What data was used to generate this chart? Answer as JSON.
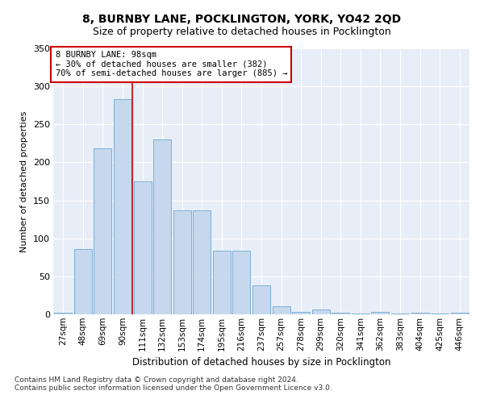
{
  "title": "8, BURNBY LANE, POCKLINGTON, YORK, YO42 2QD",
  "subtitle": "Size of property relative to detached houses in Pocklington",
  "xlabel": "Distribution of detached houses by size in Pocklington",
  "ylabel": "Number of detached properties",
  "categories": [
    "27sqm",
    "48sqm",
    "69sqm",
    "90sqm",
    "111sqm",
    "132sqm",
    "153sqm",
    "174sqm",
    "195sqm",
    "216sqm",
    "237sqm",
    "257sqm",
    "278sqm",
    "299sqm",
    "320sqm",
    "341sqm",
    "362sqm",
    "383sqm",
    "404sqm",
    "425sqm",
    "446sqm"
  ],
  "values": [
    2,
    86,
    219,
    283,
    175,
    230,
    137,
    137,
    84,
    84,
    38,
    11,
    3,
    6,
    2,
    1,
    3,
    1,
    2,
    1,
    2
  ],
  "bar_color": "#c5d8ed",
  "bar_edge_color": "#7bafd4",
  "vline_x": 3.5,
  "vline_color": "#cc0000",
  "annotation_box_text": "8 BURNBY LANE: 98sqm\n← 30% of detached houses are smaller (382)\n70% of semi-detached houses are larger (885) →",
  "annotation_box_color": "#cc0000",
  "background_color": "#e8eef8",
  "grid_color": "#ffffff",
  "footer1": "Contains HM Land Registry data © Crown copyright and database right 2024.",
  "footer2": "Contains public sector information licensed under the Open Government Licence v3.0.",
  "ylim": [
    0,
    350
  ],
  "yticks": [
    0,
    50,
    100,
    150,
    200,
    250,
    300,
    350
  ],
  "title_fontsize": 10,
  "subtitle_fontsize": 9,
  "xlabel_fontsize": 8.5,
  "ylabel_fontsize": 8,
  "tick_fontsize": 8,
  "xtick_fontsize": 7.5,
  "footer_fontsize": 6.5,
  "ann_fontsize": 7.5
}
